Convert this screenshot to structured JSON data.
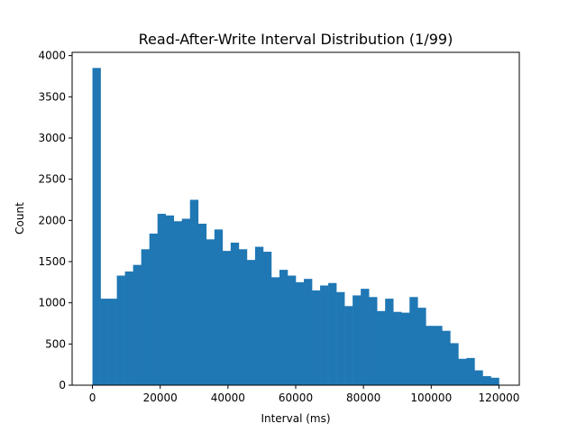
{
  "chart_data": {
    "type": "bar",
    "title": "Read-After-Write Interval Distribution (1/99)",
    "xlabel": "Interval (ms)",
    "ylabel": "Count",
    "xlim": [
      -6000,
      126000
    ],
    "ylim": [
      0,
      4040
    ],
    "xticks": [
      0,
      20000,
      40000,
      60000,
      80000,
      100000,
      120000
    ],
    "yticks": [
      0,
      500,
      1000,
      1500,
      2000,
      2500,
      3000,
      3500,
      4000
    ],
    "grid": false,
    "legend": "none",
    "bar_color": "#1f77b4",
    "bin_edges": [
      0,
      2400,
      4800,
      7200,
      9600,
      12000,
      14400,
      16800,
      19200,
      21600,
      24000,
      26400,
      28800,
      31200,
      33600,
      36000,
      38400,
      40800,
      43200,
      45600,
      48000,
      50400,
      52800,
      55200,
      57600,
      60000,
      62400,
      64800,
      67200,
      69600,
      72000,
      74400,
      76800,
      79200,
      81600,
      84000,
      86400,
      88800,
      91200,
      93600,
      96000,
      98400,
      100800,
      103200,
      105600,
      108000,
      110400,
      112800,
      115200,
      117600,
      120000
    ],
    "values": [
      3850,
      1050,
      1050,
      1330,
      1380,
      1460,
      1650,
      1840,
      2080,
      2060,
      1990,
      2020,
      2250,
      1960,
      1770,
      1890,
      1630,
      1730,
      1650,
      1520,
      1680,
      1620,
      1310,
      1400,
      1330,
      1250,
      1290,
      1150,
      1210,
      1240,
      1130,
      960,
      1090,
      1170,
      1070,
      900,
      1050,
      890,
      880,
      1070,
      940,
      720,
      720,
      660,
      510,
      320,
      330,
      180,
      110,
      90
    ]
  }
}
